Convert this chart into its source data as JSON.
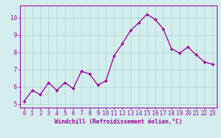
{
  "x": [
    0,
    1,
    2,
    3,
    4,
    5,
    6,
    7,
    8,
    9,
    10,
    11,
    12,
    13,
    14,
    15,
    16,
    17,
    18,
    19,
    20,
    21,
    22,
    23
  ],
  "y": [
    5.15,
    5.8,
    5.55,
    6.25,
    5.8,
    6.25,
    5.9,
    6.9,
    6.75,
    6.1,
    6.35,
    7.8,
    8.5,
    9.25,
    9.7,
    10.2,
    9.9,
    9.35,
    8.2,
    7.95,
    8.3,
    7.85,
    7.45,
    7.3
  ],
  "line_color": "#9b009b",
  "marker": "D",
  "marker_size": 2,
  "linewidth": 1.0,
  "xlabel": "Windchill (Refroidissement éolien,°C)",
  "xlabel_color": "#9b009b",
  "xlabel_fontsize": 6.0,
  "xtick_labels": [
    "0",
    "1",
    "2",
    "3",
    "4",
    "5",
    "6",
    "7",
    "8",
    "9",
    "10",
    "11",
    "12",
    "13",
    "14",
    "15",
    "16",
    "17",
    "18",
    "19",
    "20",
    "21",
    "22",
    "23"
  ],
  "ytick_labels": [
    "5",
    "6",
    "7",
    "8",
    "9",
    "10"
  ],
  "ylim": [
    4.8,
    10.7
  ],
  "xlim": [
    -0.5,
    23.5
  ],
  "grid_color": "#aecece",
  "bg_color": "#d4eeee",
  "tick_color": "#9b009b",
  "tick_fontsize": 6.0,
  "spine_color": "#9b009b"
}
